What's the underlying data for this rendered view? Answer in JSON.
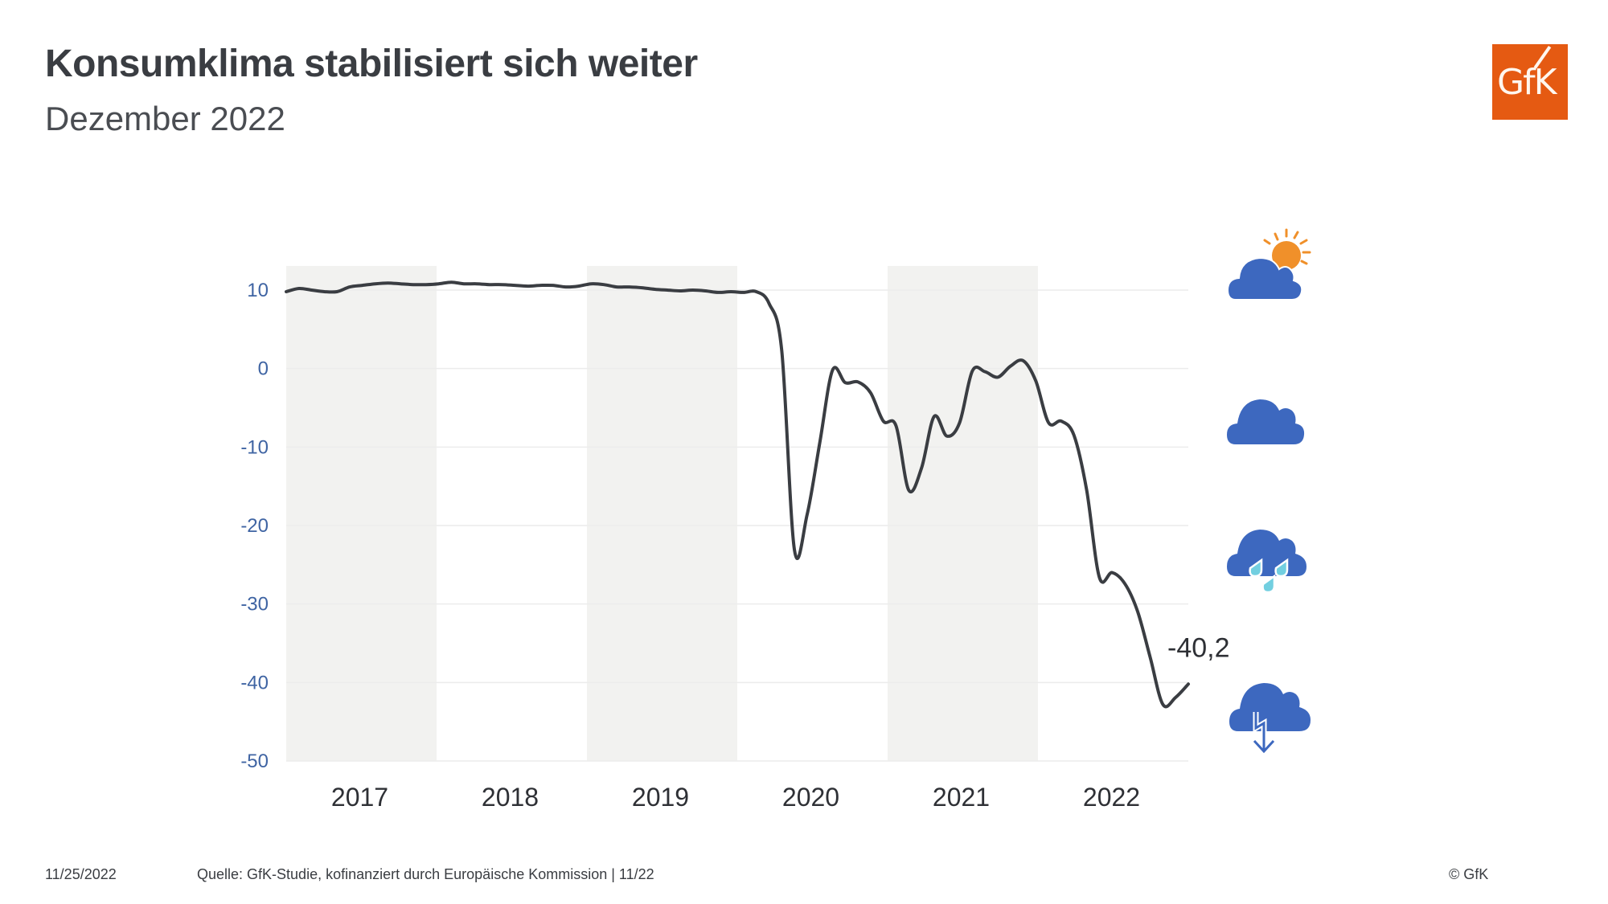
{
  "header": {
    "title": "Konsumklima stabilisiert sich weiter",
    "subtitle": "Dezember 2022",
    "logo_text": "GfK"
  },
  "colors": {
    "brand": "#e55a12",
    "line": "#3a3d42",
    "axis_label": "#3f64a3",
    "band": "#f2f2f0",
    "grid": "#ececec",
    "icon_cloud": "#3d68bf",
    "icon_sun": "#f0902a",
    "icon_rain": "#72cfe0"
  },
  "weather_icons": [
    {
      "name": "sun-cloud-icon",
      "meaning": "sunny with clouds"
    },
    {
      "name": "cloud-icon",
      "meaning": "cloudy"
    },
    {
      "name": "rain-cloud-icon",
      "meaning": "rain"
    },
    {
      "name": "thunderstorm-cloud-icon",
      "meaning": "thunderstorm"
    }
  ],
  "chart_data": {
    "type": "line",
    "title": "Konsumklima stabilisiert sich weiter",
    "subtitle": "Dezember 2022",
    "xlabel": "",
    "ylabel": "",
    "ylim": [
      -50,
      10
    ],
    "yticks": [
      10,
      0,
      -10,
      -20,
      -30,
      -40,
      -50
    ],
    "ytick_labels": [
      "10",
      "0",
      "-10",
      "-20",
      "-30",
      "-40",
      "-50"
    ],
    "xtick_labels": [
      "2017",
      "2018",
      "2019",
      "2020",
      "2021",
      "2022"
    ],
    "shaded_years": [
      "2017",
      "2019",
      "2021"
    ],
    "grid": true,
    "legend": "none",
    "annotation": {
      "text": "-40,2",
      "target": "last point"
    },
    "series": [
      {
        "name": "Konsumklima",
        "frequency": "monthly",
        "start": "2017-01",
        "values": [
          9.8,
          10.2,
          10.0,
          9.8,
          9.8,
          10.4,
          10.6,
          10.8,
          10.9,
          10.8,
          10.7,
          10.7,
          10.8,
          11.0,
          10.8,
          10.8,
          10.7,
          10.7,
          10.6,
          10.5,
          10.6,
          10.6,
          10.4,
          10.5,
          10.8,
          10.7,
          10.4,
          10.4,
          10.3,
          10.1,
          10.0,
          9.9,
          10.0,
          9.9,
          9.7,
          9.8,
          9.7,
          9.8,
          8.3,
          2.3,
          -23.1,
          -18.6,
          -9.4,
          -0.2,
          -1.8,
          -1.7,
          -3.1,
          -6.7,
          -7.3,
          -15.5,
          -12.7,
          -6.1,
          -8.6,
          -6.9,
          -0.3,
          -0.4,
          -1.1,
          0.3,
          1.0,
          -1.6,
          -6.9,
          -6.7,
          -8.5,
          -15.5,
          -26.6,
          -26.0,
          -27.4,
          -30.9,
          -36.8,
          -42.8,
          -41.9,
          -40.2
        ]
      }
    ]
  },
  "footer": {
    "date": "11/25/2022",
    "source": "Quelle: GfK-Studie, kofinanziert durch Europäische Kommission | 11/22",
    "copyright": "© GfK"
  }
}
